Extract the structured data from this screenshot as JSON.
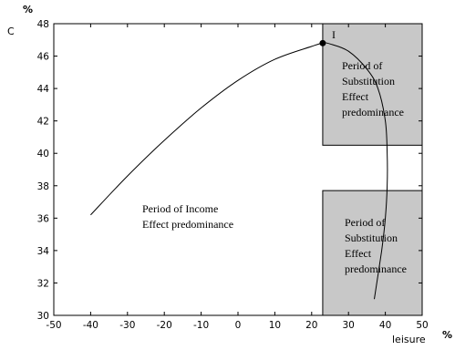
{
  "chart_data": {
    "type": "line",
    "xlabel": "leisure",
    "x_unit": "%",
    "ylabel": "C",
    "y_unit": "%",
    "xlim": [
      -50,
      50
    ],
    "ylim": [
      30,
      48
    ],
    "x_ticks": [
      -50,
      -40,
      -30,
      -20,
      -10,
      0,
      10,
      20,
      30,
      40,
      50
    ],
    "y_ticks": [
      30,
      32,
      34,
      36,
      38,
      40,
      42,
      44,
      46,
      48
    ],
    "grid": false,
    "series": [
      {
        "x": [
          -40,
          -30,
          -20,
          -10,
          0,
          10,
          20,
          23,
          25,
          30,
          35,
          38,
          40,
          40.5,
          40.5,
          40,
          39,
          37
        ],
        "y": [
          36.2,
          38.6,
          40.8,
          42.8,
          44.5,
          45.8,
          46.6,
          46.8,
          46.75,
          46.3,
          45.2,
          44.0,
          42.0,
          40.0,
          38.0,
          36.0,
          34.0,
          31.0
        ]
      }
    ],
    "marked_point": {
      "x": 23,
      "y": 46.8,
      "label": "I"
    },
    "shaded_regions": [
      {
        "x_range": [
          23,
          50
        ],
        "y_range": [
          40.5,
          48
        ]
      },
      {
        "x_range": [
          23,
          50
        ],
        "y_range": [
          30,
          37.7
        ]
      }
    ],
    "annotations": [
      {
        "lines": [
          "Period of Income",
          "Effect predominance"
        ]
      },
      {
        "lines": [
          "Period of",
          "Substitution",
          "Effect",
          "predominance"
        ]
      },
      {
        "lines": [
          "Period of",
          "Substitution",
          "Effect",
          "predominance"
        ]
      }
    ],
    "colors": {
      "shade": "#c8c8c8",
      "line": "#000000",
      "background": "#ffffff"
    }
  }
}
